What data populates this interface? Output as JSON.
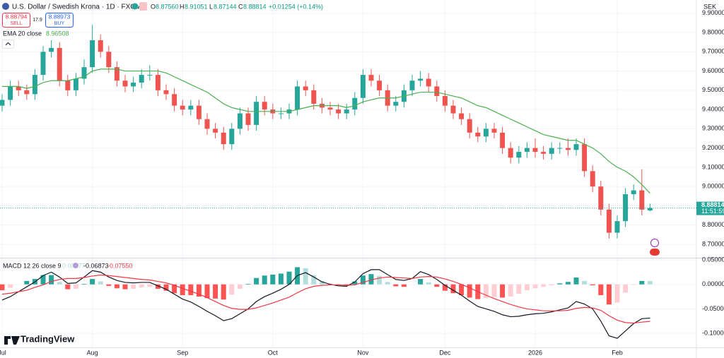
{
  "header": {
    "symbol": "U.S. Dollar / Swedish Krona · 1D · FXCM",
    "o_label": "O",
    "o": "8.87560",
    "h_label": "H",
    "h": "8.91051",
    "l_label": "L",
    "l": "8.87144",
    "c_label": "C",
    "c": "8.88814",
    "change": "+0.01254 (+0.14%)",
    "sell_price": "8.88794",
    "sell": "SELL",
    "spread": "17.9",
    "buy_price": "8.88973",
    "buy": "BUY",
    "currency": "SEK",
    "countdown": "11:51:59",
    "logo": "TradingView"
  },
  "chart_data": [
    {
      "type": "candlestick",
      "up_color": "#26a69a",
      "down_color": "#ef5350",
      "grid": true,
      "categories": [
        "Jul",
        null,
        null,
        null,
        null,
        null,
        null,
        null,
        null,
        null,
        null,
        "Aug",
        null,
        null,
        null,
        null,
        null,
        null,
        null,
        null,
        null,
        null,
        "Sep",
        null,
        null,
        null,
        null,
        null,
        null,
        null,
        null,
        null,
        null,
        "Oct",
        null,
        null,
        null,
        null,
        null,
        null,
        null,
        null,
        null,
        null,
        "Nov",
        null,
        null,
        null,
        null,
        null,
        null,
        null,
        null,
        null,
        "Dec",
        null,
        null,
        null,
        null,
        null,
        null,
        null,
        null,
        null,
        null,
        "2026",
        null,
        null,
        null,
        null,
        null,
        null,
        null,
        null,
        null,
        "Feb",
        null,
        null,
        null,
        null
      ],
      "open": [
        9.42,
        9.45,
        9.52,
        9.5,
        9.48,
        9.58,
        9.7,
        9.72,
        9.55,
        9.5,
        9.56,
        9.62,
        9.76,
        9.7,
        9.62,
        9.55,
        9.52,
        9.54,
        9.58,
        9.58,
        9.5,
        9.48,
        9.42,
        9.4,
        9.42,
        9.35,
        9.3,
        9.28,
        9.22,
        9.3,
        9.38,
        9.32,
        9.44,
        9.4,
        9.38,
        9.38,
        9.4,
        9.52,
        9.5,
        9.43,
        9.41,
        9.4,
        9.38,
        9.4,
        9.46,
        9.58,
        9.55,
        9.5,
        9.42,
        9.44,
        9.5,
        9.55,
        9.56,
        9.52,
        9.47,
        9.42,
        9.38,
        9.35,
        9.28,
        9.26,
        9.3,
        9.28,
        9.2,
        9.15,
        9.18,
        9.2,
        9.18,
        9.17,
        9.2,
        9.2,
        9.19,
        9.22,
        9.08,
        9.0,
        8.88,
        8.76,
        8.82,
        8.96,
        8.98,
        8.8756
      ],
      "high": [
        9.48,
        9.55,
        9.55,
        9.53,
        9.61,
        9.73,
        9.76,
        9.75,
        9.58,
        9.59,
        9.66,
        9.84,
        9.79,
        9.73,
        9.65,
        9.58,
        9.57,
        9.61,
        9.63,
        9.61,
        9.53,
        9.51,
        9.45,
        9.45,
        9.45,
        9.38,
        9.33,
        9.31,
        9.33,
        9.41,
        9.41,
        9.47,
        9.47,
        9.43,
        9.41,
        9.43,
        9.55,
        9.55,
        9.53,
        9.46,
        9.44,
        9.43,
        9.43,
        9.49,
        9.61,
        9.61,
        9.58,
        9.53,
        9.47,
        9.53,
        9.58,
        9.6,
        9.59,
        9.55,
        9.5,
        9.45,
        9.41,
        9.38,
        9.31,
        9.33,
        9.33,
        9.31,
        9.23,
        9.21,
        9.23,
        9.25,
        9.21,
        9.23,
        9.23,
        9.25,
        9.25,
        9.25,
        9.11,
        9.03,
        8.91,
        8.85,
        8.99,
        9.01,
        9.09,
        8.91051
      ],
      "low": [
        9.39,
        9.42,
        9.47,
        9.45,
        9.45,
        9.55,
        9.67,
        9.52,
        9.47,
        9.47,
        9.53,
        9.59,
        9.67,
        9.59,
        9.52,
        9.49,
        9.49,
        9.51,
        9.55,
        9.47,
        9.45,
        9.39,
        9.37,
        9.37,
        9.32,
        9.27,
        9.25,
        9.19,
        9.19,
        9.27,
        9.29,
        9.29,
        9.37,
        9.35,
        9.35,
        9.35,
        9.37,
        9.47,
        9.4,
        9.38,
        9.37,
        9.35,
        9.35,
        9.37,
        9.43,
        9.52,
        9.47,
        9.39,
        9.39,
        9.41,
        9.47,
        9.52,
        9.49,
        9.44,
        9.39,
        9.35,
        9.32,
        9.25,
        9.23,
        9.23,
        9.25,
        9.17,
        9.12,
        9.12,
        9.15,
        9.15,
        9.14,
        9.14,
        9.17,
        9.16,
        9.16,
        9.05,
        8.97,
        8.85,
        8.73,
        8.73,
        8.79,
        8.93,
        8.85,
        8.87144
      ],
      "close": [
        9.45,
        9.52,
        9.5,
        9.48,
        9.58,
        9.7,
        9.72,
        9.55,
        9.5,
        9.56,
        9.62,
        9.76,
        9.7,
        9.62,
        9.55,
        9.52,
        9.54,
        9.58,
        9.58,
        9.5,
        9.48,
        9.42,
        9.4,
        9.42,
        9.35,
        9.3,
        9.28,
        9.22,
        9.3,
        9.38,
        9.32,
        9.44,
        9.4,
        9.38,
        9.38,
        9.4,
        9.52,
        9.5,
        9.43,
        9.41,
        9.4,
        9.38,
        9.4,
        9.46,
        9.58,
        9.55,
        9.5,
        9.42,
        9.44,
        9.5,
        9.55,
        9.56,
        9.52,
        9.47,
        9.42,
        9.38,
        9.35,
        9.28,
        9.26,
        9.3,
        9.28,
        9.2,
        9.15,
        9.18,
        9.2,
        9.18,
        9.17,
        9.2,
        9.2,
        9.19,
        9.22,
        9.08,
        9.0,
        8.88,
        8.76,
        8.82,
        8.96,
        8.98,
        8.88,
        8.88814
      ],
      "series": [
        {
          "name": "EMA 20 close",
          "legend_value": "8.96508",
          "color": "#4caf50",
          "values": [
            9.52,
            9.52,
            9.52,
            9.51,
            9.52,
            9.54,
            9.55,
            9.55,
            9.55,
            9.56,
            9.57,
            9.6,
            9.61,
            9.61,
            9.61,
            9.6,
            9.6,
            9.6,
            9.6,
            9.6,
            9.59,
            9.57,
            9.55,
            9.53,
            9.51,
            9.49,
            9.46,
            9.43,
            9.41,
            9.4,
            9.39,
            9.39,
            9.39,
            9.39,
            9.39,
            9.39,
            9.4,
            9.41,
            9.42,
            9.42,
            9.42,
            9.42,
            9.41,
            9.42,
            9.44,
            9.45,
            9.46,
            9.46,
            9.46,
            9.47,
            9.48,
            9.49,
            9.49,
            9.49,
            9.48,
            9.47,
            9.46,
            9.44,
            9.42,
            9.41,
            9.39,
            9.37,
            9.35,
            9.33,
            9.31,
            9.29,
            9.27,
            9.26,
            9.25,
            9.24,
            9.24,
            9.22,
            9.2,
            9.17,
            9.13,
            9.1,
            9.08,
            9.05,
            9.01,
            8.96508
          ]
        }
      ],
      "ylim": [
        8.63,
        9.969
      ],
      "yticks": [
        {
          "value": 8.7,
          "label": "8.70000"
        },
        {
          "value": 8.8,
          "label": "8.80000"
        },
        {
          "value": 8.9,
          "label": "8.90000"
        },
        {
          "value": 9.0,
          "label": "9.00000"
        },
        {
          "value": 9.1,
          "label": "9.10000"
        },
        {
          "value": 9.2,
          "label": "9.20000"
        },
        {
          "value": 9.3,
          "label": "9.30000"
        },
        {
          "value": 9.4,
          "label": "9.40000"
        },
        {
          "value": 9.5,
          "label": "9.50000"
        },
        {
          "value": 9.6,
          "label": "9.60000"
        },
        {
          "value": 9.7,
          "label": "9.70000"
        },
        {
          "value": 9.8,
          "label": "9.80000"
        },
        {
          "value": 9.9,
          "label": "9.90000"
        }
      ]
    },
    {
      "type": "macd",
      "title": "MACD 12 26 close 9",
      "grid": true,
      "histogram": {
        "name": "Histogram",
        "legend_value": "0.00677",
        "colors": {
          "up_rising": "#26a69a",
          "up_falling": "#b2dfdb",
          "down_falling": "#ff5252",
          "down_rising": "#ffcdd2"
        },
        "values": [
          -0.012,
          -0.007,
          0,
          0.007,
          0.011,
          0.019,
          0.019,
          0.005,
          -0.01,
          -0.009,
          0.001,
          0.011,
          0.006,
          -0.003,
          -0.008,
          -0.01,
          -0.009,
          -0.006,
          -0.005,
          -0.009,
          -0.013,
          -0.018,
          -0.022,
          -0.022,
          -0.025,
          -0.028,
          -0.029,
          -0.031,
          -0.021,
          -0.009,
          0.001,
          0.013,
          0.018,
          0.02,
          0.022,
          0.026,
          0.035,
          0.033,
          0.019,
          0.007,
          0.001,
          -0.002,
          -0.002,
          0.006,
          0.018,
          0.021,
          0.017,
          0.005,
          -0.004,
          -0.005,
          0,
          0.011,
          0.004,
          -0.005,
          -0.013,
          -0.018,
          -0.022,
          -0.027,
          -0.03,
          -0.028,
          -0.026,
          -0.027,
          -0.025,
          -0.019,
          -0.012,
          -0.008,
          -0.005,
          -0.002,
          0.002,
          0.005,
          0.014,
          0.007,
          -0.002,
          -0.022,
          -0.041,
          -0.037,
          -0.017,
          -0.001,
          0.007,
          0.00677
        ]
      },
      "series": [
        {
          "name": "MACD",
          "legend_value": "-0.06873",
          "color": "#131722",
          "values": [
            -0.032,
            -0.025,
            -0.015,
            -0.005,
            0.005,
            0.018,
            0.025,
            0.015,
            0.002,
            0.003,
            0.015,
            0.028,
            0.025,
            0.015,
            0.008,
            0.004,
            0.003,
            0.004,
            0.004,
            -0.003,
            -0.01,
            -0.02,
            -0.03,
            -0.036,
            -0.045,
            -0.055,
            -0.064,
            -0.074,
            -0.07,
            -0.06,
            -0.05,
            -0.035,
            -0.025,
            -0.018,
            -0.01,
            0.0,
            0.018,
            0.024,
            0.015,
            0.005,
            0.0,
            -0.003,
            -0.004,
            0.005,
            0.022,
            0.03,
            0.03,
            0.02,
            0.01,
            0.008,
            0.012,
            0.026,
            0.02,
            0.01,
            -0.002,
            -0.012,
            -0.022,
            -0.034,
            -0.045,
            -0.05,
            -0.055,
            -0.062,
            -0.066,
            -0.065,
            -0.062,
            -0.06,
            -0.059,
            -0.056,
            -0.052,
            -0.048,
            -0.035,
            -0.04,
            -0.05,
            -0.075,
            -0.105,
            -0.11,
            -0.095,
            -0.08,
            -0.07,
            -0.06873
          ]
        },
        {
          "name": "Signal",
          "legend_value": "-0.07550",
          "color": "#f23645",
          "values": [
            -0.02,
            -0.018,
            -0.015,
            -0.012,
            -0.006,
            -0.001,
            0.006,
            0.01,
            0.012,
            0.012,
            0.014,
            0.017,
            0.019,
            0.018,
            0.016,
            0.014,
            0.012,
            0.01,
            0.009,
            0.006,
            0.003,
            -0.002,
            -0.008,
            -0.014,
            -0.02,
            -0.027,
            -0.035,
            -0.043,
            -0.049,
            -0.051,
            -0.051,
            -0.048,
            -0.043,
            -0.038,
            -0.032,
            -0.026,
            -0.017,
            -0.009,
            -0.004,
            -0.002,
            -0.001,
            -0.001,
            -0.002,
            -0.001,
            0.004,
            0.009,
            0.013,
            0.015,
            0.014,
            0.013,
            0.012,
            0.015,
            0.016,
            0.015,
            0.011,
            0.006,
            0.0,
            -0.007,
            -0.015,
            -0.022,
            -0.029,
            -0.035,
            -0.041,
            -0.046,
            -0.05,
            -0.052,
            -0.054,
            -0.054,
            -0.054,
            -0.053,
            -0.049,
            -0.047,
            -0.048,
            -0.053,
            -0.064,
            -0.073,
            -0.078,
            -0.079,
            -0.077,
            -0.0755
          ]
        }
      ],
      "ylim": [
        -0.1286,
        0.0529
      ],
      "yticks": [
        {
          "value": 0.05,
          "label": "0.05000"
        },
        {
          "value": 0,
          "label": "0.00000"
        },
        {
          "value": -0.05,
          "label": "-0.05000"
        },
        {
          "value": -0.1,
          "label": "-0.10000"
        }
      ]
    }
  ]
}
